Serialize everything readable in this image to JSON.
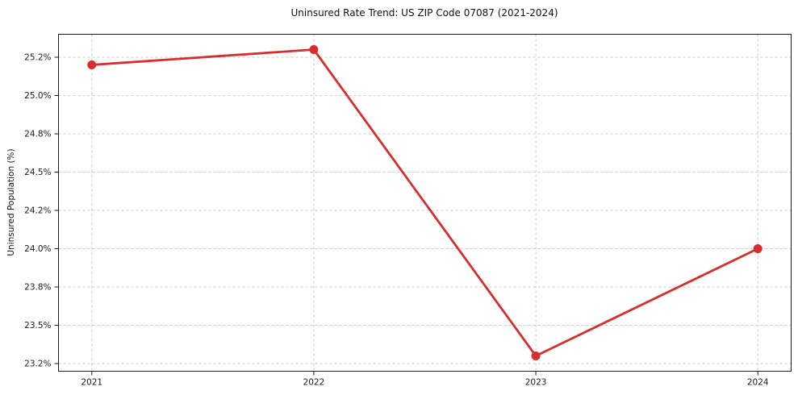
{
  "chart_data": {
    "type": "line",
    "title": "Uninsured Rate Trend: US ZIP Code 07087 (2021-2024)",
    "ylabel": "Uninsured Population (%)",
    "xlabel": "",
    "x": [
      2021,
      2022,
      2023,
      2024
    ],
    "xtick_labels": [
      "2021",
      "2022",
      "2023",
      "2024"
    ],
    "values": [
      25.2,
      25.3,
      23.3,
      24.0
    ],
    "ytick_values": [
      23.25,
      23.5,
      23.75,
      24.0,
      24.25,
      24.5,
      24.75,
      25.0,
      25.25
    ],
    "ytick_labels": [
      "23.2%",
      "23.5%",
      "23.8%",
      "24.0%",
      "24.2%",
      "24.5%",
      "24.8%",
      "25.0%",
      "25.2%"
    ],
    "xlim": [
      2020.85,
      2024.15
    ],
    "ylim": [
      23.2,
      25.4
    ],
    "grid": true,
    "legend": false,
    "line_color": "#d32f2f",
    "marker_color": "#d32f2f",
    "grid_color": "#c8c8c8",
    "spine_color": "#1a1a1a",
    "tick_text_color": "#1a1a1a",
    "marker": "circle"
  }
}
